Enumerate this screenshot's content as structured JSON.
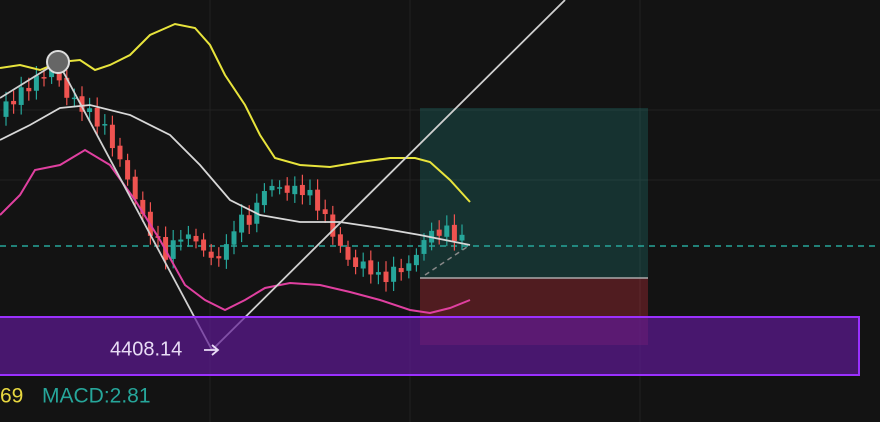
{
  "price_label": "4408.14",
  "indicator": {
    "value": "69",
    "macd": "MACD:2.81"
  }
}
